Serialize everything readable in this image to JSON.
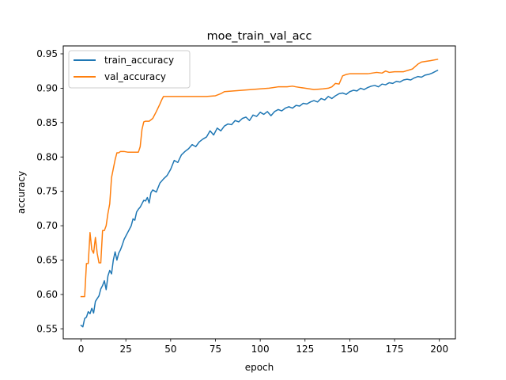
{
  "chart_data": {
    "type": "line",
    "title": "moe_train_val_acc",
    "xlabel": "epoch",
    "ylabel": "accuracy",
    "xlim": [
      -9.95,
      208.95
    ],
    "ylim": [
      0.5355,
      0.9615
    ],
    "xticks": [
      0,
      25,
      50,
      75,
      100,
      125,
      150,
      175,
      200
    ],
    "xtick_labels": [
      "0",
      "25",
      "50",
      "75",
      "100",
      "125",
      "150",
      "175",
      "200"
    ],
    "yticks": [
      0.55,
      0.6,
      0.65,
      0.7,
      0.75,
      0.8,
      0.85,
      0.9,
      0.95
    ],
    "ytick_labels": [
      "0.55",
      "0.60",
      "0.65",
      "0.70",
      "0.75",
      "0.80",
      "0.85",
      "0.90",
      "0.95"
    ],
    "grid": false,
    "legend_position": "top-left",
    "series": [
      {
        "name": "train_accuracy",
        "color": "#1f77b4",
        "x": [
          0,
          1,
          2,
          3,
          4,
          5,
          6,
          7,
          8,
          9,
          10,
          11,
          12,
          13,
          14,
          15,
          16,
          17,
          18,
          19,
          20,
          21,
          22,
          23,
          24,
          25,
          26,
          27,
          28,
          29,
          30,
          31,
          32,
          33,
          34,
          35,
          36,
          37,
          38,
          39,
          40,
          42,
          44,
          46,
          48,
          50,
          52,
          54,
          56,
          58,
          60,
          62,
          64,
          66,
          68,
          70,
          72,
          74,
          76,
          78,
          80,
          82,
          84,
          86,
          88,
          90,
          92,
          94,
          96,
          98,
          100,
          102,
          104,
          106,
          108,
          110,
          112,
          114,
          116,
          118,
          120,
          122,
          124,
          126,
          128,
          130,
          132,
          134,
          136,
          138,
          140,
          142,
          144,
          146,
          148,
          150,
          152,
          154,
          156,
          158,
          160,
          162,
          164,
          166,
          168,
          170,
          172,
          174,
          176,
          178,
          180,
          182,
          184,
          186,
          188,
          190,
          192,
          194,
          196,
          199
        ],
        "values": [
          0.555,
          0.553,
          0.565,
          0.567,
          0.575,
          0.572,
          0.58,
          0.573,
          0.59,
          0.594,
          0.598,
          0.608,
          0.613,
          0.62,
          0.607,
          0.627,
          0.635,
          0.63,
          0.65,
          0.662,
          0.65,
          0.66,
          0.665,
          0.672,
          0.68,
          0.685,
          0.69,
          0.695,
          0.7,
          0.71,
          0.708,
          0.72,
          0.724,
          0.727,
          0.732,
          0.737,
          0.736,
          0.741,
          0.733,
          0.748,
          0.752,
          0.749,
          0.762,
          0.768,
          0.773,
          0.782,
          0.795,
          0.792,
          0.803,
          0.808,
          0.812,
          0.818,
          0.815,
          0.822,
          0.826,
          0.829,
          0.838,
          0.832,
          0.842,
          0.838,
          0.845,
          0.848,
          0.847,
          0.853,
          0.851,
          0.856,
          0.858,
          0.853,
          0.861,
          0.859,
          0.865,
          0.862,
          0.866,
          0.86,
          0.866,
          0.869,
          0.867,
          0.871,
          0.873,
          0.871,
          0.875,
          0.874,
          0.878,
          0.877,
          0.88,
          0.882,
          0.88,
          0.885,
          0.883,
          0.888,
          0.885,
          0.889,
          0.892,
          0.893,
          0.891,
          0.895,
          0.897,
          0.896,
          0.9,
          0.898,
          0.901,
          0.903,
          0.904,
          0.902,
          0.906,
          0.905,
          0.908,
          0.907,
          0.91,
          0.909,
          0.912,
          0.913,
          0.912,
          0.915,
          0.917,
          0.916,
          0.919,
          0.92,
          0.922,
          0.926
        ]
      },
      {
        "name": "val_accuracy",
        "color": "#ff7f0e",
        "x": [
          0,
          1,
          2,
          3,
          4,
          5,
          6,
          7,
          8,
          9,
          10,
          11,
          12,
          13,
          14,
          15,
          16,
          17,
          18,
          19,
          20,
          21,
          22,
          24,
          26,
          28,
          30,
          32,
          33,
          34,
          35,
          36,
          38,
          40,
          42,
          44,
          45,
          46,
          50,
          55,
          60,
          65,
          70,
          75,
          78,
          80,
          85,
          90,
          95,
          100,
          105,
          110,
          115,
          118,
          120,
          125,
          130,
          135,
          138,
          140,
          142,
          144,
          145,
          146,
          148,
          150,
          155,
          160,
          165,
          168,
          170,
          172,
          175,
          180,
          185,
          188,
          190,
          195,
          199
        ],
        "values": [
          0.597,
          0.597,
          0.597,
          0.645,
          0.645,
          0.69,
          0.665,
          0.66,
          0.683,
          0.66,
          0.646,
          0.646,
          0.693,
          0.693,
          0.7,
          0.718,
          0.732,
          0.77,
          0.783,
          0.796,
          0.806,
          0.806,
          0.808,
          0.808,
          0.807,
          0.807,
          0.807,
          0.807,
          0.815,
          0.84,
          0.851,
          0.852,
          0.852,
          0.856,
          0.866,
          0.877,
          0.883,
          0.888,
          0.888,
          0.888,
          0.888,
          0.888,
          0.888,
          0.889,
          0.892,
          0.895,
          0.896,
          0.897,
          0.898,
          0.899,
          0.9,
          0.902,
          0.902,
          0.903,
          0.902,
          0.9,
          0.898,
          0.899,
          0.9,
          0.902,
          0.907,
          0.906,
          0.912,
          0.918,
          0.92,
          0.921,
          0.921,
          0.921,
          0.923,
          0.922,
          0.925,
          0.923,
          0.924,
          0.924,
          0.928,
          0.935,
          0.938,
          0.94,
          0.942
        ]
      }
    ]
  }
}
